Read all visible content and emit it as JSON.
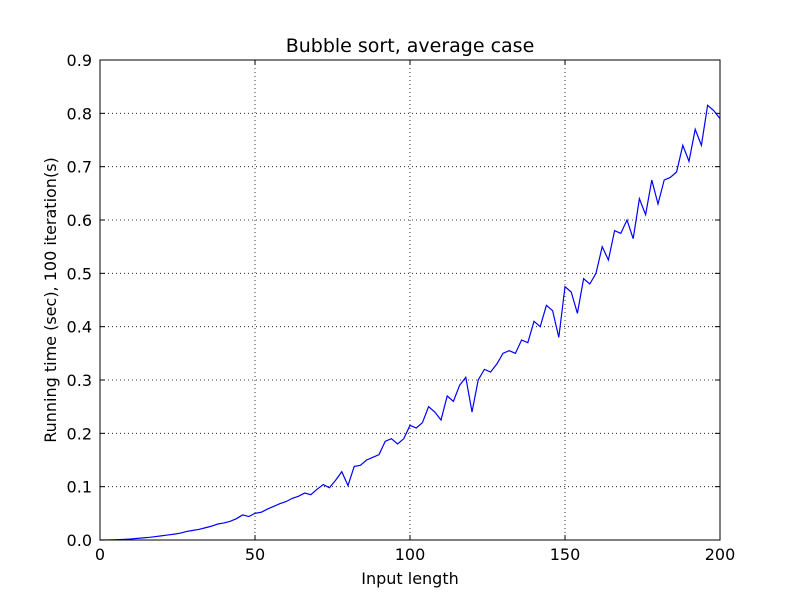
{
  "chart_data": {
    "type": "line",
    "title": "Bubble sort, average case",
    "x_label": "Input length",
    "y_label": "Running time (sec), 100 iteration(s)",
    "x": [
      0,
      2,
      4,
      6,
      8,
      10,
      12,
      14,
      16,
      18,
      20,
      22,
      24,
      26,
      28,
      30,
      32,
      34,
      36,
      38,
      40,
      42,
      44,
      46,
      48,
      50,
      52,
      54,
      56,
      58,
      60,
      62,
      64,
      66,
      68,
      70,
      72,
      74,
      76,
      78,
      80,
      82,
      84,
      86,
      88,
      90,
      92,
      94,
      96,
      98,
      100,
      102,
      104,
      106,
      108,
      110,
      112,
      114,
      116,
      118,
      120,
      122,
      124,
      126,
      128,
      130,
      132,
      134,
      136,
      138,
      140,
      142,
      144,
      146,
      148,
      150,
      152,
      154,
      156,
      158,
      160,
      162,
      164,
      166,
      168,
      170,
      172,
      174,
      176,
      178,
      180,
      182,
      184,
      186,
      188,
      190,
      192,
      194,
      196,
      198,
      200
    ],
    "series": [
      {
        "name": "Bubble sort",
        "color": "#0000ff",
        "values": [
          0,
          0.0001,
          0.0003,
          0.0007,
          0.0013,
          0.002,
          0.003,
          0.004,
          0.005,
          0.0065,
          0.008,
          0.0095,
          0.011,
          0.013,
          0.016,
          0.018,
          0.02,
          0.023,
          0.026,
          0.03,
          0.032,
          0.035,
          0.04,
          0.047,
          0.044,
          0.05,
          0.052,
          0.058,
          0.063,
          0.068,
          0.072,
          0.078,
          0.082,
          0.088,
          0.085,
          0.095,
          0.104,
          0.098,
          0.112,
          0.128,
          0.102,
          0.138,
          0.14,
          0.15,
          0.155,
          0.16,
          0.185,
          0.19,
          0.18,
          0.19,
          0.215,
          0.21,
          0.22,
          0.25,
          0.24,
          0.225,
          0.27,
          0.26,
          0.29,
          0.305,
          0.24,
          0.3,
          0.32,
          0.315,
          0.33,
          0.35,
          0.355,
          0.35,
          0.375,
          0.37,
          0.41,
          0.4,
          0.44,
          0.43,
          0.38,
          0.475,
          0.465,
          0.425,
          0.49,
          0.48,
          0.5,
          0.55,
          0.525,
          0.58,
          0.575,
          0.6,
          0.565,
          0.64,
          0.61,
          0.675,
          0.63,
          0.675,
          0.68,
          0.69,
          0.74,
          0.71,
          0.77,
          0.74,
          0.815,
          0.805,
          0.79
        ]
      }
    ],
    "xlim": [
      0,
      200
    ],
    "ylim": [
      0,
      0.9
    ],
    "xticks": [
      0,
      50,
      100,
      150,
      200
    ],
    "yticks": [
      {
        "value": 0,
        "label": "0.0"
      },
      0.1,
      0.2,
      0.3,
      0.4,
      0.5,
      0.6,
      0.7,
      0.8,
      0.9
    ],
    "grid": true
  }
}
